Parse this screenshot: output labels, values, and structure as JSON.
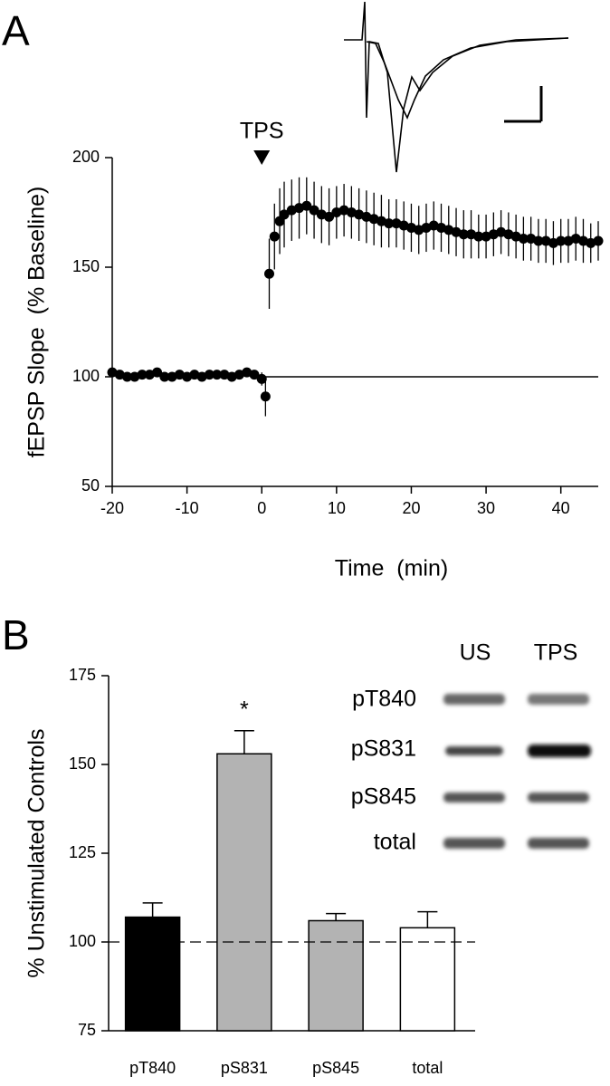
{
  "panels": [
    "A",
    "B"
  ],
  "chart_data": [
    {
      "type": "scatter",
      "xlabel": "Time  (min)",
      "ylabel": "fEPSP Slope  (% Baseline)",
      "annotation": "TPS",
      "xlim": [
        -20,
        45
      ],
      "xticks": [
        -20,
        -10,
        0,
        10,
        20,
        30,
        40
      ],
      "ylim": [
        50,
        200
      ],
      "yticks": [
        50,
        100,
        150,
        200
      ],
      "color": "#000000",
      "x": [
        -20,
        -19,
        -18,
        -17,
        -16,
        -15,
        -14,
        -13,
        -12,
        -11,
        -10,
        -9,
        -8,
        -7,
        -6,
        -5,
        -4,
        -3,
        -2,
        -1,
        0,
        0.5,
        1,
        1.7,
        2.4,
        3,
        4,
        5,
        6,
        7,
        8,
        9,
        10,
        11,
        12,
        13,
        14,
        15,
        16,
        17,
        18,
        19,
        20,
        21,
        22,
        23,
        24,
        25,
        26,
        27,
        28,
        29,
        30,
        31,
        32,
        33,
        34,
        35,
        36,
        37,
        38,
        39,
        40,
        41,
        42,
        43,
        44,
        45
      ],
      "values": [
        102,
        101,
        100,
        100,
        101,
        101,
        102,
        100,
        100,
        101,
        100,
        101,
        100,
        101,
        101,
        101,
        100,
        101,
        102,
        101,
        99,
        91,
        147,
        164,
        171,
        174,
        176,
        177,
        178,
        176,
        174,
        173,
        175,
        176,
        175,
        174,
        173,
        172,
        171,
        170,
        170,
        169,
        168,
        167,
        168,
        169,
        168,
        167,
        166,
        165,
        165,
        164,
        164,
        165,
        166,
        165,
        164,
        163,
        163,
        162,
        162,
        161,
        162,
        162,
        163,
        162,
        161,
        162
      ],
      "errors": [
        null,
        null,
        null,
        null,
        null,
        null,
        null,
        null,
        null,
        null,
        null,
        null,
        null,
        null,
        null,
        null,
        null,
        null,
        null,
        null,
        3,
        9,
        16,
        15,
        15,
        15,
        14,
        14,
        13,
        13,
        13,
        13,
        12,
        12,
        12,
        12,
        12,
        12,
        12,
        11,
        11,
        11,
        11,
        11,
        11,
        11,
        11,
        11,
        11,
        11,
        11,
        10,
        10,
        10,
        10,
        10,
        10,
        10,
        10,
        10,
        10,
        10,
        10,
        10,
        10,
        10,
        9,
        9
      ],
      "reference_line": 100
    },
    {
      "type": "bar",
      "ylabel": "% Unstimulated Controls",
      "categories": [
        "pT840",
        "pS831",
        "pS845",
        "total"
      ],
      "values": [
        107,
        153,
        106,
        104
      ],
      "errors": [
        4,
        6.5,
        2,
        4.5
      ],
      "colors": [
        "#000000",
        "#b3b3b3",
        "#b3b3b3",
        "#ffffff"
      ],
      "ylim": [
        75,
        175
      ],
      "yticks": [
        75,
        100,
        125,
        150,
        175
      ],
      "reference_line": 100,
      "significance": "*"
    }
  ],
  "blot": {
    "lanes": [
      "US",
      "TPS"
    ],
    "rows": [
      "pT840",
      "pS831",
      "pS845",
      "total"
    ]
  }
}
